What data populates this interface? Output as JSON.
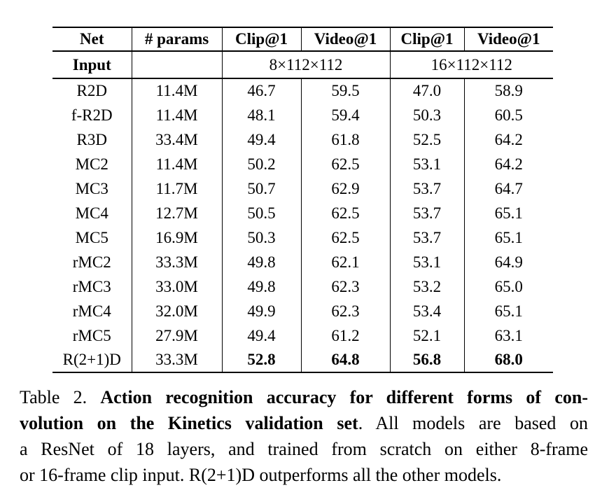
{
  "table": {
    "columns": [
      "Net",
      "# params",
      "Clip@1",
      "Video@1",
      "Clip@1",
      "Video@1"
    ],
    "input_row": {
      "label": "Input",
      "params_cell": "",
      "spans": [
        "8×112×112",
        "16×112×112"
      ]
    },
    "rows": [
      {
        "net": "R2D",
        "params": "11.4M",
        "values": [
          "46.7",
          "59.5",
          "47.0",
          "58.9"
        ],
        "bold_values": false
      },
      {
        "net": "f-R2D",
        "params": "11.4M",
        "values": [
          "48.1",
          "59.4",
          "50.3",
          "60.5"
        ],
        "bold_values": false
      },
      {
        "net": "R3D",
        "params": "33.4M",
        "values": [
          "49.4",
          "61.8",
          "52.5",
          "64.2"
        ],
        "bold_values": false
      },
      {
        "net": "MC2",
        "params": "11.4M",
        "values": [
          "50.2",
          "62.5",
          "53.1",
          "64.2"
        ],
        "bold_values": false
      },
      {
        "net": "MC3",
        "params": "11.7M",
        "values": [
          "50.7",
          "62.9",
          "53.7",
          "64.7"
        ],
        "bold_values": false
      },
      {
        "net": "MC4",
        "params": "12.7M",
        "values": [
          "50.5",
          "62.5",
          "53.7",
          "65.1"
        ],
        "bold_values": false
      },
      {
        "net": "MC5",
        "params": "16.9M",
        "values": [
          "50.3",
          "62.5",
          "53.7",
          "65.1"
        ],
        "bold_values": false
      },
      {
        "net": "rMC2",
        "params": "33.3M",
        "values": [
          "49.8",
          "62.1",
          "53.1",
          "64.9"
        ],
        "bold_values": false
      },
      {
        "net": "rMC3",
        "params": "33.0M",
        "values": [
          "49.8",
          "62.3",
          "53.2",
          "65.0"
        ],
        "bold_values": false
      },
      {
        "net": "rMC4",
        "params": "32.0M",
        "values": [
          "49.9",
          "62.3",
          "53.4",
          "65.1"
        ],
        "bold_values": false
      },
      {
        "net": "rMC5",
        "params": "27.9M",
        "values": [
          "49.4",
          "61.2",
          "52.1",
          "63.1"
        ],
        "bold_values": false
      },
      {
        "net": "R(2+1)D",
        "params": "33.3M",
        "values": [
          "52.8",
          "64.8",
          "56.8",
          "68.0"
        ],
        "bold_values": true
      }
    ]
  },
  "caption": {
    "lines": [
      [
        {
          "text": "Table 2. ",
          "bold": false
        },
        {
          "text": "Action recognition accuracy for different forms of con-",
          "bold": true
        }
      ],
      [
        {
          "text": "volution on the Kinetics validation set",
          "bold": true
        },
        {
          "text": ". All models are based on",
          "bold": false
        }
      ],
      [
        {
          "text": "a ResNet of 18 layers, and trained from scratch on either 8-frame",
          "bold": false
        }
      ],
      [
        {
          "text": "or 16-frame clip input. R(2+1)D outperforms all the other models.",
          "bold": false
        }
      ]
    ]
  }
}
